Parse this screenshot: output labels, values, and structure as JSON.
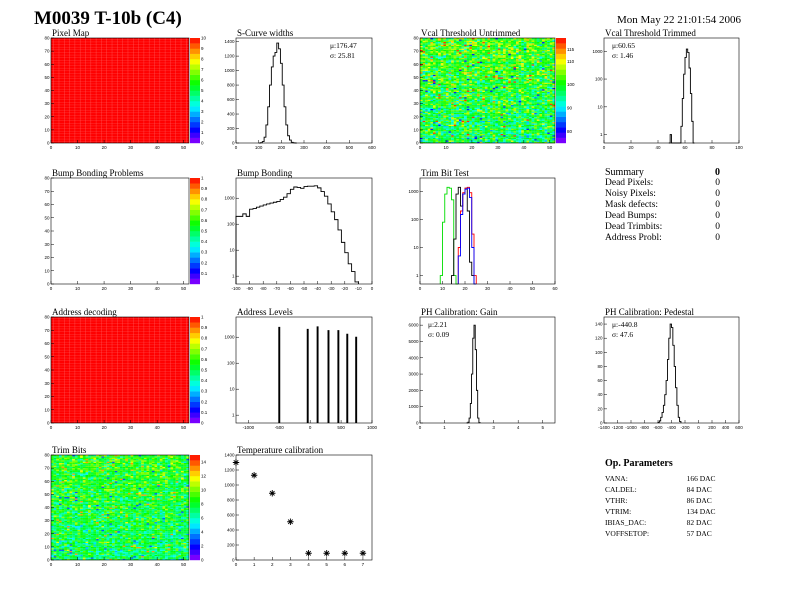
{
  "header": {
    "title": "M0039 T-10b (C4)",
    "date": "Mon May 22 21:01:54 2006"
  },
  "summary": {
    "title": "Summary",
    "total": "0",
    "items": [
      {
        "label": "Dead Pixels:",
        "value": "0"
      },
      {
        "label": "Noisy Pixels:",
        "value": "0"
      },
      {
        "label": "Mask defects:",
        "value": "0"
      },
      {
        "label": "Dead Bumps:",
        "value": "0"
      },
      {
        "label": "Dead Trimbits:",
        "value": "0"
      },
      {
        "label": "Address Probl:",
        "value": "0"
      }
    ]
  },
  "op_parameters": {
    "title": "Op. Parameters",
    "items": [
      {
        "label": "VANA:",
        "value": "166 DAC"
      },
      {
        "label": "CALDEL:",
        "value": "84 DAC"
      },
      {
        "label": "VTHR:",
        "value": "86 DAC"
      },
      {
        "label": "VTRIM:",
        "value": "134 DAC"
      },
      {
        "label": "IBIAS_DAC:",
        "value": "82 DAC"
      },
      {
        "label": "VOFFSETOP:",
        "value": "57 DAC"
      }
    ]
  },
  "chart_data": [
    {
      "id": "pixel-map",
      "type": "heatmap",
      "title": "Pixel Map",
      "fill": "uniform",
      "value": 10,
      "zlim": [
        0,
        10
      ],
      "xlim": [
        0,
        52
      ],
      "ylim": [
        0,
        80
      ],
      "xticks": [
        0,
        10,
        20,
        30,
        40,
        50
      ],
      "yticks": [
        0,
        10,
        20,
        30,
        40,
        50,
        60,
        70,
        80
      ],
      "zticks": [
        0,
        1,
        2,
        3,
        4,
        5,
        6,
        7,
        8,
        9,
        10
      ]
    },
    {
      "id": "s-curve-widths",
      "type": "bar",
      "title": "S-Curve widths",
      "log": false,
      "xlim": [
        0,
        600
      ],
      "ylim": [
        0,
        1450
      ],
      "xticks": [
        0,
        100,
        200,
        300,
        400,
        500,
        600
      ],
      "yticks": [
        0,
        200,
        400,
        600,
        800,
        1000,
        1200,
        1400
      ],
      "stats": [
        "μ:176.47",
        "σ: 25.81"
      ],
      "stats_pos": "top-right",
      "series": [
        {
          "x_start": 100,
          "bin_width": 8,
          "color": "#000000",
          "values": [
            0,
            5,
            20,
            80,
            250,
            500,
            800,
            1050,
            1200,
            1250,
            1380,
            1300,
            1100,
            800,
            500,
            250,
            100,
            40,
            10,
            3,
            0
          ]
        }
      ]
    },
    {
      "id": "vcal-threshold-untrimmed",
      "type": "heatmap",
      "title": "Vcal Threshold Untrimmed",
      "fill": "noise",
      "mean": 100,
      "spread": 9,
      "zlim": [
        75,
        120
      ],
      "xlim": [
        0,
        52
      ],
      "ylim": [
        0,
        80
      ],
      "xticks": [
        0,
        10,
        20,
        30,
        40,
        50
      ],
      "yticks": [
        0,
        10,
        20,
        30,
        40,
        50,
        60,
        70,
        80
      ],
      "zticks": [
        80,
        90,
        100,
        110,
        115
      ]
    },
    {
      "id": "vcal-threshold-trimmed",
      "type": "bar",
      "title": "Vcal Threshold Trimmed",
      "log": true,
      "xlim": [
        0,
        100
      ],
      "ylim": [
        0.5,
        3000
      ],
      "xticks": [
        0,
        20,
        40,
        60,
        80,
        100
      ],
      "yticks": [
        1,
        10,
        100,
        1000
      ],
      "stats": [
        "μ:60.65",
        "σ: 1.46"
      ],
      "stats_pos": "top-left",
      "series": [
        {
          "x_start": 48,
          "bin_width": 1,
          "color": "#000000",
          "values": [
            0,
            1,
            0,
            0,
            0,
            0,
            0,
            0,
            0,
            2,
            20,
            150,
            600,
            1200,
            900,
            250,
            30,
            3,
            0
          ]
        }
      ]
    },
    {
      "id": "bump-bonding-problems",
      "type": "heatmap",
      "title": "Bump Bonding Problems",
      "fill": "empty",
      "zlim": [
        0,
        1
      ],
      "xlim": [
        0,
        52
      ],
      "ylim": [
        0,
        80
      ],
      "xticks": [
        0,
        10,
        20,
        30,
        40,
        50
      ],
      "yticks": [
        0,
        10,
        20,
        30,
        40,
        50,
        60,
        70,
        80
      ],
      "zticks": [
        0.1,
        0.2,
        0.3,
        0.4,
        0.5,
        0.6,
        0.7,
        0.8,
        0.9,
        1
      ]
    },
    {
      "id": "bump-bonding",
      "type": "bar",
      "title": "Bump Bonding",
      "log": true,
      "xlim": [
        -100,
        0
      ],
      "ylim": [
        0.5,
        6000
      ],
      "xticks": [
        -100,
        -90,
        -80,
        -70,
        -60,
        -50,
        -40,
        -30,
        -20,
        -10,
        0
      ],
      "yticks": [
        1,
        10,
        100,
        1000
      ],
      "series": [
        {
          "x_start": -100,
          "bin_width": 2.5,
          "color": "#000000",
          "values": [
            200,
            200,
            250,
            200,
            380,
            400,
            450,
            500,
            550,
            600,
            650,
            700,
            750,
            900,
            1100,
            1500,
            2200,
            2700,
            2600,
            2400,
            2800,
            2900,
            2900,
            3000,
            2500,
            1800,
            1200,
            600,
            300,
            150,
            60,
            20,
            8,
            3,
            1.5,
            0.6
          ]
        }
      ]
    },
    {
      "id": "trim-bit-test",
      "type": "bar",
      "title": "Trim Bit Test",
      "log": true,
      "xlim": [
        0,
        60
      ],
      "ylim": [
        0.5,
        3000
      ],
      "xticks": [
        0,
        10,
        20,
        30,
        40,
        50,
        60
      ],
      "yticks": [
        1,
        10,
        100,
        1000
      ],
      "series": [
        {
          "x_start": 9,
          "bin_width": 1,
          "color": "#00dd00",
          "values": [
            1,
            80,
            800,
            1400,
            1300,
            500,
            1,
            0
          ]
        },
        {
          "x_start": 14,
          "bin_width": 1,
          "color": "#000000",
          "values": [
            1,
            20,
            800,
            1400,
            300,
            800,
            1300,
            200,
            3,
            1
          ]
        },
        {
          "x_start": 17,
          "bin_width": 1,
          "color": "#ff0000",
          "values": [
            10,
            200,
            900,
            1300,
            1400,
            900,
            30,
            1
          ]
        },
        {
          "x_start": 17,
          "bin_width": 1,
          "color": "#0000ff",
          "values": [
            5,
            150,
            800,
            1200,
            1300,
            600,
            10,
            0
          ]
        }
      ]
    },
    {
      "id": "address-decoding",
      "type": "heatmap",
      "title": "Address decoding",
      "fill": "uniform",
      "value": 1,
      "zlim": [
        0,
        1
      ],
      "xlim": [
        0,
        52
      ],
      "ylim": [
        0,
        80
      ],
      "xticks": [
        0,
        10,
        20,
        30,
        40,
        50
      ],
      "yticks": [
        0,
        10,
        20,
        30,
        40,
        50,
        60,
        70,
        80
      ],
      "zticks": [
        0,
        0.1,
        0.2,
        0.3,
        0.4,
        0.5,
        0.6,
        0.7,
        0.8,
        0.9,
        1
      ]
    },
    {
      "id": "address-levels",
      "type": "bar",
      "title": "Address Levels",
      "log": true,
      "xlim": [
        -1200,
        1000
      ],
      "ylim": [
        0.5,
        6000
      ],
      "xticks": [
        -1000,
        -500,
        0,
        500,
        1000
      ],
      "yticks": [
        1,
        10,
        100,
        1000
      ],
      "series": [
        {
          "spikes": [
            -500,
            -40,
            120,
            296,
            456,
            600,
            744
          ],
          "spike_width": 15,
          "color": "#000000",
          "values": [
            2400,
            2000,
            2500,
            1800,
            1800,
            1300,
            1000
          ]
        }
      ]
    },
    {
      "id": "ph-calibration-gain",
      "type": "bar",
      "title": "PH Calibration: Gain",
      "log": false,
      "xlim": [
        0,
        5.5
      ],
      "ylim": [
        0,
        6500
      ],
      "xticks": [
        0,
        1,
        2,
        3,
        4,
        5
      ],
      "yticks": [
        0,
        1000,
        2000,
        3000,
        4000,
        5000,
        6000
      ],
      "stats": [
        "μ:2.21",
        "σ: 0.09"
      ],
      "stats_pos": "top-left",
      "series": [
        {
          "x_start": 1.9,
          "bin_width": 0.05,
          "color": "#000000",
          "values": [
            5,
            50,
            300,
            1200,
            3000,
            5200,
            6000,
            4500,
            2000,
            300,
            20
          ]
        }
      ]
    },
    {
      "id": "ph-calibration-pedestal",
      "type": "bar",
      "title": "PH Calibration: Pedestal",
      "log": false,
      "xlim": [
        -1400,
        600
      ],
      "ylim": [
        0,
        150
      ],
      "xticks": [
        -1400,
        -1200,
        -1000,
        -800,
        -600,
        -400,
        -200,
        0,
        200,
        400,
        600
      ],
      "yticks": [
        0,
        20,
        40,
        60,
        80,
        100,
        120,
        140
      ],
      "stats": [
        "μ:-440.8",
        "σ: 47.6"
      ],
      "stats_pos": "top-left",
      "series": [
        {
          "x_start": -600,
          "bin_width": 20,
          "color": "#000000",
          "values": [
            1,
            3,
            8,
            15,
            25,
            40,
            60,
            90,
            120,
            140,
            135,
            110,
            80,
            50,
            25,
            8,
            2
          ]
        }
      ]
    },
    {
      "id": "trim-bits",
      "type": "heatmap",
      "title": "Trim Bits",
      "fill": "noise",
      "mean": 8,
      "spread": 2.5,
      "zlim": [
        0,
        15
      ],
      "xlim": [
        0,
        52
      ],
      "ylim": [
        0,
        80
      ],
      "xticks": [
        0,
        10,
        20,
        30,
        40,
        50
      ],
      "yticks": [
        0,
        10,
        20,
        30,
        40,
        50,
        60,
        70,
        80
      ],
      "zticks": [
        0,
        2,
        4,
        6,
        8,
        10,
        12,
        14
      ]
    },
    {
      "id": "temperature-calibration",
      "type": "scatter",
      "title": "Temperature calibration",
      "xlim": [
        0,
        7.5
      ],
      "ylim": [
        0,
        1400
      ],
      "xticks": [
        0,
        1,
        2,
        3,
        4,
        5,
        6,
        7
      ],
      "yticks": [
        0,
        200,
        400,
        600,
        800,
        1000,
        1200,
        1400
      ],
      "x": [
        0,
        1,
        2,
        3,
        4,
        5,
        6,
        7
      ],
      "y": [
        1300,
        1130,
        890,
        510,
        90,
        90,
        90,
        90
      ],
      "marker": "star"
    }
  ]
}
